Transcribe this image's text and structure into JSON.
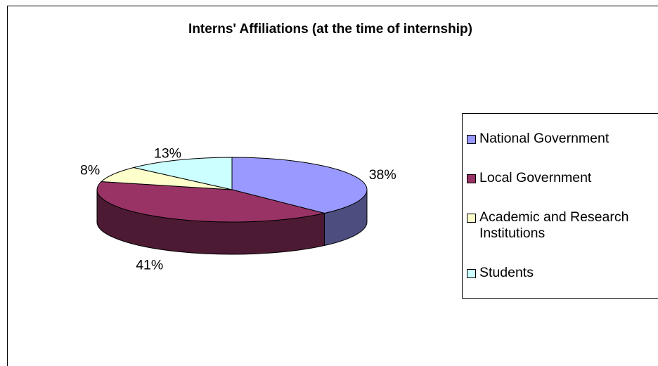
{
  "chart_data": {
    "type": "pie",
    "title": "Interns' Affiliations (at the time of internship)",
    "categories": [
      "National Government",
      "Local Government",
      "Academic and Research Institutions",
      "Students"
    ],
    "values": [
      38,
      41,
      8,
      13
    ],
    "value_labels": [
      "38%",
      "41%",
      "8%",
      "13%"
    ],
    "colors": [
      "#9999ff",
      "#993366",
      "#ffffcc",
      "#ccffff"
    ],
    "legend": "right"
  }
}
